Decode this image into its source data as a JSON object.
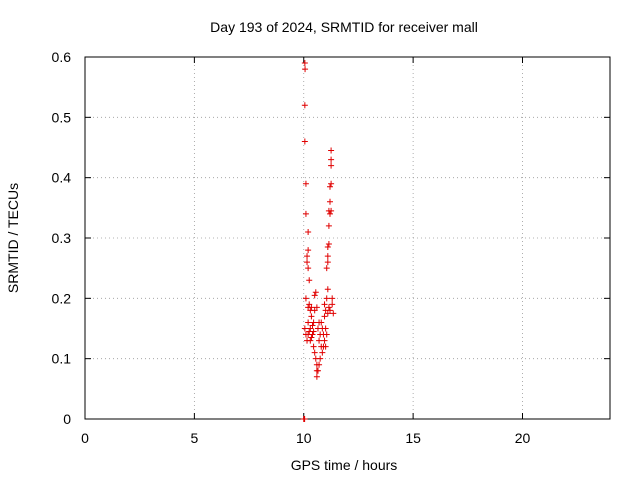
{
  "chart_data": {
    "type": "scatter",
    "title": "Day 193 of 2024, SRMTID for receiver mall",
    "xlabel": "GPS time / hours",
    "ylabel": "SRMTID / TECUs",
    "xlim": [
      0,
      24
    ],
    "ylim": [
      0,
      0.6
    ],
    "xticks": [
      0,
      5,
      10,
      15,
      20
    ],
    "yticks": [
      0,
      0.1,
      0.2,
      0.3,
      0.4,
      0.5,
      0.6
    ],
    "grid": true,
    "marker": "+",
    "color": "#e00000",
    "points": [
      [
        10.0,
        0.0
      ],
      [
        10.02,
        0.0
      ],
      [
        10.04,
        0.0
      ],
      [
        10.05,
        0.59
      ],
      [
        10.06,
        0.58
      ],
      [
        10.05,
        0.52
      ],
      [
        10.05,
        0.46
      ],
      [
        10.1,
        0.39
      ],
      [
        10.1,
        0.34
      ],
      [
        10.2,
        0.31
      ],
      [
        10.2,
        0.28
      ],
      [
        10.15,
        0.27
      ],
      [
        10.15,
        0.26
      ],
      [
        10.2,
        0.25
      ],
      [
        10.25,
        0.23
      ],
      [
        10.1,
        0.2
      ],
      [
        10.2,
        0.185
      ],
      [
        10.3,
        0.18
      ],
      [
        10.05,
        0.15
      ],
      [
        10.1,
        0.14
      ],
      [
        10.15,
        0.13
      ],
      [
        10.2,
        0.16
      ],
      [
        10.3,
        0.15
      ],
      [
        10.35,
        0.17
      ],
      [
        10.4,
        0.14
      ],
      [
        10.45,
        0.16
      ],
      [
        10.3,
        0.13
      ],
      [
        10.25,
        0.19
      ],
      [
        10.35,
        0.185
      ],
      [
        10.5,
        0.205
      ],
      [
        10.55,
        0.21
      ],
      [
        10.5,
        0.18
      ],
      [
        10.45,
        0.12
      ],
      [
        10.5,
        0.11
      ],
      [
        10.55,
        0.1
      ],
      [
        10.6,
        0.09
      ],
      [
        10.6,
        0.08
      ],
      [
        10.6,
        0.07
      ],
      [
        10.65,
        0.08
      ],
      [
        10.7,
        0.09
      ],
      [
        10.75,
        0.1
      ],
      [
        10.7,
        0.13
      ],
      [
        10.65,
        0.15
      ],
      [
        10.7,
        0.16
      ],
      [
        10.75,
        0.14
      ],
      [
        10.8,
        0.12
      ],
      [
        10.85,
        0.11
      ],
      [
        10.8,
        0.16
      ],
      [
        10.85,
        0.15
      ],
      [
        10.9,
        0.14
      ],
      [
        10.95,
        0.13
      ],
      [
        10.9,
        0.12
      ],
      [
        10.95,
        0.17
      ],
      [
        11.0,
        0.18
      ],
      [
        11.0,
        0.15
      ],
      [
        11.05,
        0.14
      ],
      [
        11.0,
        0.12
      ],
      [
        10.95,
        0.19
      ],
      [
        11.05,
        0.2
      ],
      [
        11.1,
        0.215
      ],
      [
        11.05,
        0.25
      ],
      [
        11.1,
        0.26
      ],
      [
        11.1,
        0.27
      ],
      [
        11.1,
        0.285
      ],
      [
        11.15,
        0.29
      ],
      [
        11.15,
        0.32
      ],
      [
        11.2,
        0.34
      ],
      [
        11.15,
        0.345
      ],
      [
        11.25,
        0.345
      ],
      [
        11.2,
        0.36
      ],
      [
        11.2,
        0.385
      ],
      [
        11.25,
        0.39
      ],
      [
        11.25,
        0.42
      ],
      [
        11.25,
        0.43
      ],
      [
        11.25,
        0.445
      ],
      [
        11.2,
        0.18
      ],
      [
        11.3,
        0.19
      ],
      [
        11.3,
        0.2
      ],
      [
        11.35,
        0.175
      ],
      [
        11.1,
        0.175
      ],
      [
        11.15,
        0.185
      ],
      [
        10.6,
        0.185
      ],
      [
        10.4,
        0.155
      ],
      [
        10.45,
        0.145
      ],
      [
        10.35,
        0.135
      ],
      [
        10.25,
        0.145
      ],
      [
        10.2,
        0.14
      ]
    ]
  }
}
